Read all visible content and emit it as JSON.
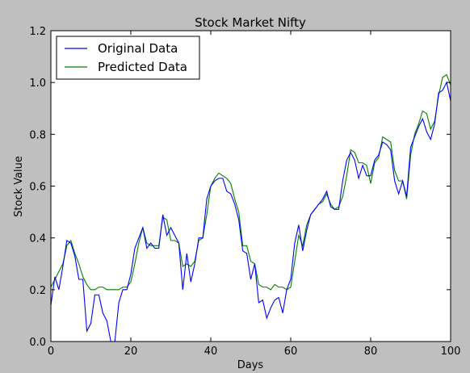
{
  "chart_data": {
    "type": "line",
    "title": "Stock Market Nifty",
    "xlabel": "Days",
    "ylabel": "Stock Value",
    "xlim": [
      0,
      100
    ],
    "ylim": [
      0.0,
      1.2
    ],
    "xticks": [
      "0",
      "20",
      "40",
      "60",
      "80",
      "100"
    ],
    "yticks": [
      "0.0",
      "0.2",
      "0.4",
      "0.6",
      "0.8",
      "1.0",
      "1.2"
    ],
    "grid": false,
    "legend_position": "top-left",
    "x": [
      0,
      1,
      2,
      3,
      4,
      5,
      6,
      7,
      8,
      9,
      10,
      11,
      12,
      13,
      14,
      15,
      16,
      17,
      18,
      19,
      20,
      21,
      22,
      23,
      24,
      25,
      26,
      27,
      28,
      29,
      30,
      31,
      32,
      33,
      34,
      35,
      36,
      37,
      38,
      39,
      40,
      41,
      42,
      43,
      44,
      45,
      46,
      47,
      48,
      49,
      50,
      51,
      52,
      53,
      54,
      55,
      56,
      57,
      58,
      59,
      60,
      61,
      62,
      63,
      64,
      65,
      66,
      67,
      68,
      69,
      70,
      71,
      72,
      73,
      74,
      75,
      76,
      77,
      78,
      79,
      80,
      81,
      82,
      83,
      84,
      85,
      86,
      87,
      88,
      89,
      90,
      91,
      92,
      93,
      94,
      95,
      96,
      97,
      98,
      99,
      100
    ],
    "series": [
      {
        "name": "Original Data",
        "color": "#0000ff",
        "values": [
          0.14,
          0.25,
          0.2,
          0.29,
          0.39,
          0.38,
          0.33,
          0.24,
          0.24,
          0.04,
          0.07,
          0.18,
          0.18,
          0.11,
          0.08,
          0.0,
          0.0,
          0.15,
          0.2,
          0.2,
          0.26,
          0.36,
          0.4,
          0.44,
          0.36,
          0.38,
          0.36,
          0.36,
          0.49,
          0.41,
          0.44,
          0.41,
          0.38,
          0.2,
          0.34,
          0.23,
          0.3,
          0.4,
          0.4,
          0.55,
          0.6,
          0.62,
          0.63,
          0.63,
          0.58,
          0.57,
          0.53,
          0.47,
          0.35,
          0.34,
          0.24,
          0.3,
          0.15,
          0.16,
          0.09,
          0.13,
          0.16,
          0.17,
          0.11,
          0.2,
          0.24,
          0.38,
          0.45,
          0.35,
          0.43,
          0.49,
          0.51,
          0.53,
          0.55,
          0.58,
          0.52,
          0.51,
          0.51,
          0.62,
          0.7,
          0.73,
          0.7,
          0.63,
          0.68,
          0.64,
          0.64,
          0.7,
          0.72,
          0.77,
          0.76,
          0.74,
          0.62,
          0.57,
          0.62,
          0.56,
          0.75,
          0.79,
          0.83,
          0.86,
          0.81,
          0.78,
          0.84,
          0.96,
          0.97,
          1.0,
          0.93
        ]
      },
      {
        "name": "Predicted Data",
        "color": "#008000",
        "values": [
          0.21,
          0.24,
          0.27,
          0.3,
          0.37,
          0.39,
          0.34,
          0.3,
          0.25,
          0.22,
          0.2,
          0.2,
          0.21,
          0.21,
          0.2,
          0.2,
          0.2,
          0.2,
          0.21,
          0.21,
          0.23,
          0.3,
          0.38,
          0.44,
          0.38,
          0.37,
          0.37,
          0.37,
          0.48,
          0.47,
          0.39,
          0.39,
          0.38,
          0.29,
          0.3,
          0.29,
          0.31,
          0.39,
          0.4,
          0.49,
          0.6,
          0.63,
          0.65,
          0.64,
          0.63,
          0.61,
          0.55,
          0.5,
          0.37,
          0.37,
          0.31,
          0.3,
          0.22,
          0.21,
          0.21,
          0.2,
          0.22,
          0.21,
          0.21,
          0.2,
          0.21,
          0.31,
          0.41,
          0.37,
          0.45,
          0.49,
          0.51,
          0.53,
          0.54,
          0.57,
          0.53,
          0.51,
          0.52,
          0.56,
          0.64,
          0.74,
          0.73,
          0.69,
          0.69,
          0.68,
          0.61,
          0.69,
          0.71,
          0.79,
          0.78,
          0.77,
          0.66,
          0.62,
          0.62,
          0.55,
          0.72,
          0.8,
          0.84,
          0.89,
          0.88,
          0.82,
          0.85,
          0.95,
          1.02,
          1.03,
          0.99
        ]
      }
    ]
  }
}
